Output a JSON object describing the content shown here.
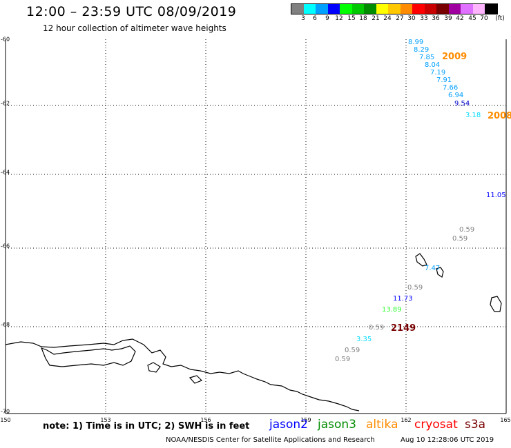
{
  "header": {
    "title": "12:00 – 23:59 UTC 08/09/2019",
    "subtitle": "12 hour collection of altimeter wave heights"
  },
  "legend": {
    "unit": "(ft)",
    "swatches": [
      {
        "color": "#808080",
        "label": "3"
      },
      {
        "color": "#00ffff",
        "label": "6"
      },
      {
        "color": "#00a0ff",
        "label": "9"
      },
      {
        "color": "#0000ff",
        "label": "12"
      },
      {
        "color": "#00ff00",
        "label": "15"
      },
      {
        "color": "#00c800",
        "label": "18"
      },
      {
        "color": "#008c00",
        "label": "21"
      },
      {
        "color": "#ffff00",
        "label": "24"
      },
      {
        "color": "#ffc800",
        "label": "27"
      },
      {
        "color": "#ff8c00",
        "label": "30"
      },
      {
        "color": "#ff0000",
        "label": "33"
      },
      {
        "color": "#c80000",
        "label": "36"
      },
      {
        "color": "#780000",
        "label": "39"
      },
      {
        "color": "#a000a0",
        "label": "42"
      },
      {
        "color": "#e070ff",
        "label": "45"
      },
      {
        "color": "#ffb4ff",
        "label": "70"
      },
      {
        "color": "#000000",
        "label": ""
      }
    ]
  },
  "map": {
    "projection": "cylindrical, south polar region",
    "longitude_range": [
      150,
      165
    ],
    "latitude_range": [
      -70,
      -60
    ],
    "lat_labels": [
      "-60",
      "-62",
      "-64",
      "-66",
      "-68",
      "-70"
    ],
    "lon_labels": [
      "150",
      "153",
      "156",
      "159",
      "162",
      "165"
    ],
    "wave_heights": [
      {
        "value": "8.99",
        "color": "#00a0ff"
      },
      {
        "value": "8.29",
        "color": "#00a0ff"
      },
      {
        "value": "7.85",
        "color": "#00a0ff"
      },
      {
        "value": "8.04",
        "color": "#00a0ff"
      },
      {
        "value": "7.19",
        "color": "#00a0ff"
      },
      {
        "value": "7.91",
        "color": "#00a0ff"
      },
      {
        "value": "7.66",
        "color": "#00a0ff"
      },
      {
        "value": "6.94",
        "color": "#00a0ff"
      },
      {
        "value": "9.54",
        "color": "#0000c8"
      },
      {
        "value": "3.18",
        "color": "#00dcff"
      },
      {
        "value": "11.05",
        "color": "#0000ff"
      },
      {
        "value": "0.59",
        "color": "#808080"
      },
      {
        "value": "0.59",
        "color": "#808080"
      },
      {
        "value": "7.47",
        "color": "#00a0ff"
      },
      {
        "value": "0.59",
        "color": "#808080"
      },
      {
        "value": "11.73",
        "color": "#0000ff"
      },
      {
        "value": "13.89",
        "color": "#33ff33"
      },
      {
        "value": "0.59",
        "color": "#808080"
      },
      {
        "value": "3.35",
        "color": "#00dcff"
      },
      {
        "value": "0.59",
        "color": "#808080"
      },
      {
        "value": "0.59",
        "color": "#808080"
      }
    ],
    "time_markers": [
      {
        "value": "2009",
        "color": "#ff8c00"
      },
      {
        "value": "2008",
        "color": "#ff8c00"
      },
      {
        "value": "2149",
        "color": "#780000"
      }
    ]
  },
  "footer": {
    "note": "note:  1) Time is in UTC;  2) SWH is in feet",
    "satellites": [
      {
        "name": "jason2",
        "color": "#0000ff"
      },
      {
        "name": "jason3",
        "color": "#008c00"
      },
      {
        "name": "altika",
        "color": "#ff8c00"
      },
      {
        "name": "cryosat",
        "color": "#ff0000"
      },
      {
        "name": "s3a",
        "color": "#780000"
      }
    ],
    "credit": "NOAA/NESDIS Center for Satellite Applications and Research",
    "generated": "Aug 10 12:28:06 UTC 2019"
  }
}
